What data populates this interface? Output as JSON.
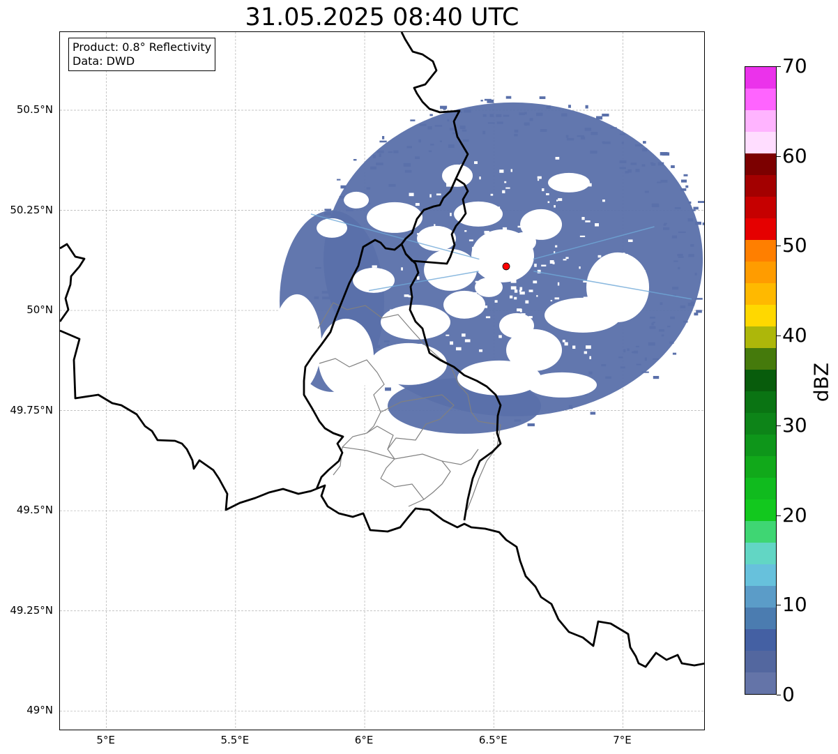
{
  "title": "31.05.2025 08:40 UTC",
  "info_box": {
    "product": "Product: 0.8° Reflectivity",
    "data": "Data: DWD"
  },
  "map": {
    "extent": {
      "lon": [
        4.82,
        7.32
      ],
      "lat": [
        48.95,
        50.695
      ]
    },
    "lat_ticks": [
      {
        "value": 50.5,
        "label": "50.5°N"
      },
      {
        "value": 50.25,
        "label": "50.25°N"
      },
      {
        "value": 50.0,
        "label": "50°N"
      },
      {
        "value": 49.75,
        "label": "49.75°N"
      },
      {
        "value": 49.5,
        "label": "49.5°N"
      },
      {
        "value": 49.25,
        "label": "49.25°N"
      },
      {
        "value": 49.0,
        "label": "49°N"
      }
    ],
    "lon_ticks": [
      {
        "value": 5.0,
        "label": "5°E"
      },
      {
        "value": 5.5,
        "label": "5.5°E"
      },
      {
        "value": 6.0,
        "label": "6°E"
      },
      {
        "value": 6.5,
        "label": "6.5°E"
      },
      {
        "value": 7.0,
        "label": "7°E"
      }
    ],
    "radar_site": {
      "lon": 6.548,
      "lat": 50.11,
      "color": "#ff0000"
    },
    "echo_color": "#5a70aa"
  },
  "colorbar": {
    "label": "dBZ",
    "ticks": [
      "0",
      "10",
      "20",
      "30",
      "40",
      "50",
      "60",
      "70"
    ],
    "colors": [
      "#6474a8",
      "#53679f",
      "#4460a3",
      "#4b7cb0",
      "#5b9cc8",
      "#67c1dc",
      "#62d6c4",
      "#3fd673",
      "#12c81e",
      "#10bb1e",
      "#11a91a",
      "#0e961a",
      "#0d8418",
      "#0a7413",
      "#085c0c",
      "#457a0c",
      "#adb70a",
      "#ffd800",
      "#ffb900",
      "#ff9c00",
      "#ff7f00",
      "#e50000",
      "#c60000",
      "#a30000",
      "#7c0000",
      "#ffddff",
      "#ffb4ff",
      "#ff64ff",
      "#eb32eb"
    ]
  }
}
